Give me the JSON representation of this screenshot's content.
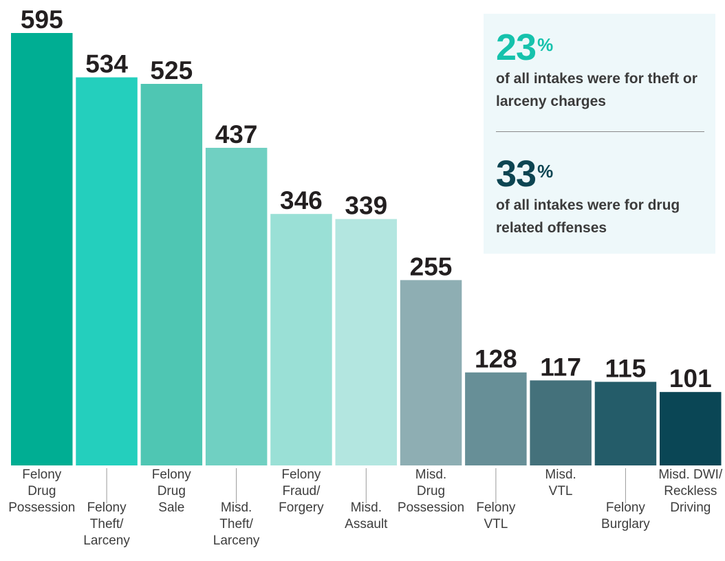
{
  "chart_data": {
    "type": "bar",
    "categories": [
      [
        "Felony",
        "Drug",
        "Possession"
      ],
      [
        "Felony",
        "Theft/",
        "Larceny"
      ],
      [
        "Felony",
        "Drug",
        "Sale"
      ],
      [
        "Misd.",
        "Theft/",
        "Larceny"
      ],
      [
        "Felony",
        "Fraud/",
        "Forgery"
      ],
      [
        "Misd.",
        "Assault"
      ],
      [
        "Misd.",
        "Drug",
        "Possession"
      ],
      [
        "Felony",
        "VTL"
      ],
      [
        "Misd.",
        "VTL"
      ],
      [
        "Felony",
        "Burglary"
      ],
      [
        "Misd. DWI/",
        "Reckless",
        "Driving"
      ]
    ],
    "values": [
      595,
      534,
      525,
      437,
      346,
      339,
      255,
      128,
      117,
      115,
      101
    ],
    "colors": [
      "#00ae93",
      "#24cfbd",
      "#4fc6b3",
      "#70d0c2",
      "#9ae0d6",
      "#b3e6e0",
      "#8eaeb3",
      "#678f97",
      "#44717b",
      "#245c69",
      "#0a4655"
    ],
    "ylim": [
      0,
      600
    ],
    "grid": false,
    "legend": "none",
    "title": "",
    "xlabel": "",
    "ylabel": ""
  },
  "callouts": [
    {
      "value": "23",
      "unit": "%",
      "text": "of all intakes were for theft or larceny charges",
      "color": "#16c2ac"
    },
    {
      "value": "33",
      "unit": "%",
      "text": "of all intakes were for drug related offenses",
      "color": "#0d4552"
    }
  ]
}
